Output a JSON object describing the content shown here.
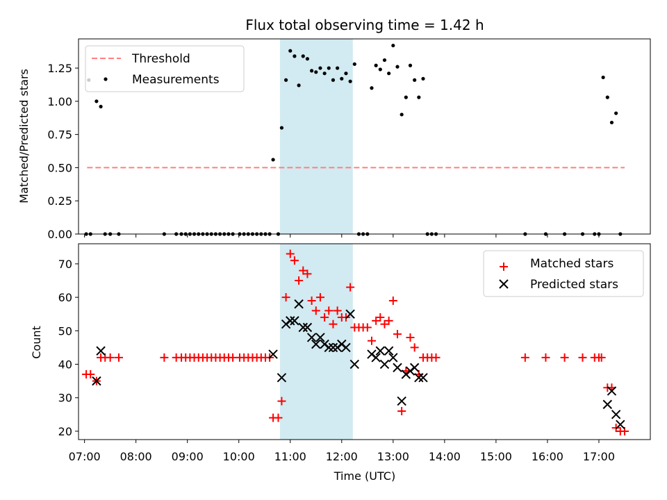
{
  "chart_data": [
    {
      "type": "scatter",
      "title": "Flux total observing time = 1.42 h",
      "xlabel": "",
      "ylabel": "Matched/Predicted stars",
      "xlim": [
        "06:53",
        "18:00"
      ],
      "ylim": [
        0.0,
        1.47
      ],
      "yticks": [
        "0.00",
        "0.25",
        "0.50",
        "0.75",
        "1.00",
        "1.25"
      ],
      "shaded_region": {
        "from": "10:48",
        "to": "12:13",
        "color": "#add8e6"
      },
      "legend": {
        "placement": "top-left",
        "entries": [
          "Threshold",
          "Measurements"
        ]
      },
      "series": [
        {
          "name": "Threshold",
          "style": "dashed-line",
          "color": "#ff7f7f",
          "points": [
            [
              "07:03",
              0.5
            ],
            [
              "17:30",
              0.5
            ]
          ]
        },
        {
          "name": "Measurements",
          "style": "dot",
          "color": "#000000",
          "points": [
            [
              "07:02",
              0.0
            ],
            [
              "07:05",
              1.16
            ],
            [
              "07:07",
              0.0
            ],
            [
              "07:14",
              1.0
            ],
            [
              "07:19",
              0.96
            ],
            [
              "07:24",
              0.0
            ],
            [
              "07:30",
              0.0
            ],
            [
              "07:40",
              0.0
            ],
            [
              "08:33",
              0.0
            ],
            [
              "08:47",
              0.0
            ],
            [
              "08:53",
              0.0
            ],
            [
              "08:58",
              0.0
            ],
            [
              "09:03",
              0.0
            ],
            [
              "09:08",
              0.0
            ],
            [
              "09:13",
              0.0
            ],
            [
              "09:18",
              0.0
            ],
            [
              "09:23",
              0.0
            ],
            [
              "09:28",
              0.0
            ],
            [
              "09:33",
              0.0
            ],
            [
              "09:38",
              0.0
            ],
            [
              "09:43",
              0.0
            ],
            [
              "09:48",
              0.0
            ],
            [
              "09:53",
              0.0
            ],
            [
              "10:01",
              0.0
            ],
            [
              "10:06",
              0.0
            ],
            [
              "10:11",
              0.0
            ],
            [
              "10:16",
              0.0
            ],
            [
              "10:21",
              0.0
            ],
            [
              "10:26",
              0.0
            ],
            [
              "10:31",
              0.0
            ],
            [
              "10:36",
              0.0
            ],
            [
              "10:40",
              0.56
            ],
            [
              "10:46",
              0.0
            ],
            [
              "10:50",
              0.8
            ],
            [
              "10:55",
              1.16
            ],
            [
              "11:00",
              1.38
            ],
            [
              "11:05",
              1.34
            ],
            [
              "11:10",
              1.12
            ],
            [
              "11:15",
              1.34
            ],
            [
              "11:20",
              1.32
            ],
            [
              "11:25",
              1.23
            ],
            [
              "11:30",
              1.22
            ],
            [
              "11:35",
              1.25
            ],
            [
              "11:40",
              1.21
            ],
            [
              "11:45",
              1.25
            ],
            [
              "11:50",
              1.16
            ],
            [
              "11:55",
              1.25
            ],
            [
              "12:00",
              1.17
            ],
            [
              "12:05",
              1.21
            ],
            [
              "12:10",
              1.15
            ],
            [
              "12:15",
              1.28
            ],
            [
              "12:20",
              0.0
            ],
            [
              "12:25",
              0.0
            ],
            [
              "12:30",
              0.0
            ],
            [
              "12:35",
              1.1
            ],
            [
              "12:40",
              1.27
            ],
            [
              "12:45",
              1.24
            ],
            [
              "12:50",
              1.31
            ],
            [
              "12:55",
              1.21
            ],
            [
              "13:00",
              1.42
            ],
            [
              "13:05",
              1.26
            ],
            [
              "13:10",
              0.9
            ],
            [
              "13:15",
              1.03
            ],
            [
              "13:20",
              1.27
            ],
            [
              "13:25",
              1.16
            ],
            [
              "13:30",
              1.03
            ],
            [
              "13:35",
              1.17
            ],
            [
              "13:40",
              0.0
            ],
            [
              "13:45",
              0.0
            ],
            [
              "13:50",
              0.0
            ],
            [
              "15:34",
              0.0
            ],
            [
              "15:58",
              0.0
            ],
            [
              "16:20",
              0.0
            ],
            [
              "16:41",
              0.0
            ],
            [
              "16:55",
              0.0
            ],
            [
              "17:00",
              0.0
            ],
            [
              "17:05",
              1.18
            ],
            [
              "17:10",
              1.03
            ],
            [
              "17:15",
              0.84
            ],
            [
              "17:20",
              0.91
            ],
            [
              "17:25",
              0.0
            ]
          ]
        }
      ]
    },
    {
      "type": "scatter",
      "title": "",
      "xlabel": "Time (UTC)",
      "ylabel": "Count",
      "xlim": [
        "06:53",
        "18:00"
      ],
      "ylim": [
        17.5,
        76.0
      ],
      "yticks": [
        "20",
        "30",
        "40",
        "50",
        "60",
        "70"
      ],
      "xticks": [
        "07:00",
        "08:00",
        "09:00",
        "10:00",
        "11:00",
        "12:00",
        "13:00",
        "14:00",
        "15:00",
        "16:00",
        "17:00"
      ],
      "shaded_region": {
        "from": "10:48",
        "to": "12:13",
        "color": "#add8e6"
      },
      "legend": {
        "placement": "top-right",
        "entries": [
          "Matched stars",
          "Predicted stars"
        ]
      },
      "series": [
        {
          "name": "Matched stars",
          "marker": "plus",
          "color": "#ff0000",
          "points": [
            [
              "07:02",
              37
            ],
            [
              "07:07",
              37
            ],
            [
              "07:14",
              35
            ],
            [
              "07:19",
              42
            ],
            [
              "07:24",
              42
            ],
            [
              "07:30",
              42
            ],
            [
              "07:40",
              42
            ],
            [
              "08:33",
              42
            ],
            [
              "08:47",
              42
            ],
            [
              "08:53",
              42
            ],
            [
              "08:58",
              42
            ],
            [
              "09:03",
              42
            ],
            [
              "09:08",
              42
            ],
            [
              "09:13",
              42
            ],
            [
              "09:18",
              42
            ],
            [
              "09:23",
              42
            ],
            [
              "09:28",
              42
            ],
            [
              "09:33",
              42
            ],
            [
              "09:38",
              42
            ],
            [
              "09:43",
              42
            ],
            [
              "09:48",
              42
            ],
            [
              "09:53",
              42
            ],
            [
              "10:01",
              42
            ],
            [
              "10:06",
              42
            ],
            [
              "10:11",
              42
            ],
            [
              "10:16",
              42
            ],
            [
              "10:21",
              42
            ],
            [
              "10:26",
              42
            ],
            [
              "10:31",
              42
            ],
            [
              "10:36",
              42
            ],
            [
              "10:40",
              24
            ],
            [
              "10:46",
              24
            ],
            [
              "10:50",
              29
            ],
            [
              "10:55",
              60
            ],
            [
              "11:00",
              73
            ],
            [
              "11:05",
              71
            ],
            [
              "11:10",
              65
            ],
            [
              "11:15",
              68
            ],
            [
              "11:20",
              67
            ],
            [
              "11:25",
              59
            ],
            [
              "11:30",
              56
            ],
            [
              "11:35",
              60
            ],
            [
              "11:40",
              54
            ],
            [
              "11:45",
              56
            ],
            [
              "11:50",
              52
            ],
            [
              "11:55",
              56
            ],
            [
              "12:00",
              54
            ],
            [
              "12:05",
              54
            ],
            [
              "12:10",
              63
            ],
            [
              "12:15",
              51
            ],
            [
              "12:20",
              51
            ],
            [
              "12:25",
              51
            ],
            [
              "12:30",
              51
            ],
            [
              "12:35",
              47
            ],
            [
              "12:40",
              53
            ],
            [
              "12:45",
              54
            ],
            [
              "12:50",
              52
            ],
            [
              "12:55",
              53
            ],
            [
              "13:00",
              59
            ],
            [
              "13:05",
              49
            ],
            [
              "13:10",
              26
            ],
            [
              "13:15",
              38
            ],
            [
              "13:20",
              48
            ],
            [
              "13:25",
              45
            ],
            [
              "13:30",
              37
            ],
            [
              "13:35",
              42
            ],
            [
              "13:40",
              42
            ],
            [
              "13:45",
              42
            ],
            [
              "13:50",
              42
            ],
            [
              "15:34",
              42
            ],
            [
              "15:58",
              42
            ],
            [
              "16:20",
              42
            ],
            [
              "16:41",
              42
            ],
            [
              "16:55",
              42
            ],
            [
              "17:00",
              42
            ],
            [
              "17:03",
              42
            ],
            [
              "17:10",
              33
            ],
            [
              "17:15",
              33
            ],
            [
              "17:20",
              21
            ],
            [
              "17:25",
              20
            ],
            [
              "17:30",
              20
            ]
          ]
        },
        {
          "name": "Predicted stars",
          "marker": "x",
          "color": "#000000",
          "points": [
            [
              "07:14",
              35
            ],
            [
              "07:19",
              44
            ],
            [
              "10:40",
              43
            ],
            [
              "10:50",
              36
            ],
            [
              "10:55",
              52
            ],
            [
              "11:00",
              53
            ],
            [
              "11:05",
              53
            ],
            [
              "11:10",
              58
            ],
            [
              "11:15",
              51
            ],
            [
              "11:20",
              51
            ],
            [
              "11:25",
              48
            ],
            [
              "11:30",
              46
            ],
            [
              "11:35",
              48
            ],
            [
              "11:40",
              46
            ],
            [
              "11:45",
              45
            ],
            [
              "11:50",
              45
            ],
            [
              "11:55",
              45
            ],
            [
              "12:00",
              46
            ],
            [
              "12:05",
              45
            ],
            [
              "12:10",
              55
            ],
            [
              "12:15",
              40
            ],
            [
              "12:35",
              43
            ],
            [
              "12:40",
              42
            ],
            [
              "12:45",
              44
            ],
            [
              "12:50",
              40
            ],
            [
              "12:55",
              44
            ],
            [
              "13:00",
              42
            ],
            [
              "13:05",
              39
            ],
            [
              "13:10",
              29
            ],
            [
              "13:15",
              37
            ],
            [
              "13:20",
              38
            ],
            [
              "13:25",
              39
            ],
            [
              "13:30",
              36
            ],
            [
              "13:35",
              36
            ],
            [
              "17:10",
              28
            ],
            [
              "17:15",
              32
            ],
            [
              "17:20",
              25
            ],
            [
              "17:25",
              22
            ]
          ]
        }
      ]
    }
  ]
}
